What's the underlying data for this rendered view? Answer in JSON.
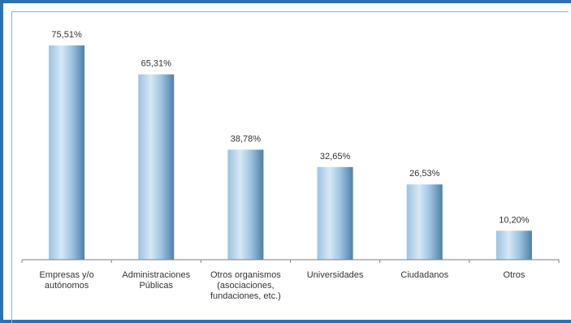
{
  "chart_data": {
    "type": "bar",
    "categories": [
      [
        "Empresas y/o",
        "autónomos"
      ],
      [
        "Administraciones",
        "Públicas"
      ],
      [
        "Otros organismos",
        "(asociaciones,",
        "fundaciones, etc.)"
      ],
      [
        "Universidades"
      ],
      [
        "Ciudadanos"
      ],
      [
        "Otros"
      ]
    ],
    "values": [
      75.51,
      65.31,
      38.78,
      32.65,
      26.53,
      10.2
    ],
    "value_labels": [
      "75,51%",
      "65,31%",
      "38,78%",
      "32,65%",
      "26,53%",
      "10,20%"
    ],
    "ylim": [
      0,
      100
    ],
    "grid": false,
    "legend": "none",
    "colors": {
      "bar_light": "#d7e8f4",
      "bar_mid": "#9cc3e0",
      "bar_dark": "#4f7fa6",
      "axis": "#7f7f7f",
      "frame": "#2a72b8"
    }
  }
}
